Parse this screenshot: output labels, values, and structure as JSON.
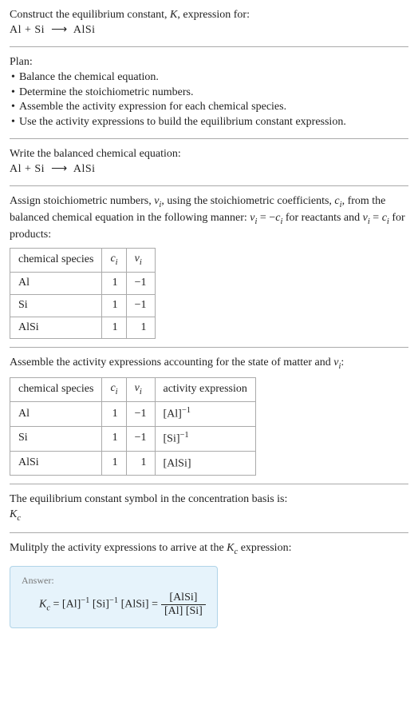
{
  "colors": {
    "text": "#222222",
    "divider": "#aaaaaa",
    "answer_bg": "#e6f3fb",
    "answer_border": "#b0d4e8",
    "answer_label": "#777777"
  },
  "header": {
    "line1_prefix": "Construct the equilibrium constant, ",
    "line1_K": "K",
    "line1_suffix": ", expression for:",
    "equation_lhs": "Al + Si",
    "arrow": "⟶",
    "equation_rhs": "AlSi"
  },
  "plan": {
    "title": "Plan:",
    "items": [
      "Balance the chemical equation.",
      "Determine the stoichiometric numbers.",
      "Assemble the activity expression for each chemical species.",
      "Use the activity expressions to build the equilibrium constant expression."
    ]
  },
  "balanced": {
    "label": "Write the balanced chemical equation:",
    "equation_lhs": "Al + Si",
    "arrow": "⟶",
    "equation_rhs": "AlSi"
  },
  "stoich_text": {
    "p1": "Assign stoichiometric numbers, ",
    "nu": "ν",
    "sub_i": "i",
    "p2": ", using the stoichiometric coefficients, ",
    "c": "c",
    "p3": ", from the balanced chemical equation in the following manner: ",
    "eq1_lhs": "ν",
    "eq1_rhs_prefix": " = −",
    "eq1_rhs_c": "c",
    "p4": " for reactants and ",
    "eq2_lhs": "ν",
    "eq2_rhs_prefix": " = ",
    "eq2_rhs_c": "c",
    "p5": " for products:"
  },
  "stoich_table": {
    "headers": {
      "species": "chemical species",
      "c": "c",
      "nu": "ν"
    },
    "rows": [
      {
        "species": "Al",
        "c": "1",
        "nu": "−1"
      },
      {
        "species": "Si",
        "c": "1",
        "nu": "−1"
      },
      {
        "species": "AlSi",
        "c": "1",
        "nu": "1"
      }
    ]
  },
  "activity_text": {
    "prefix": "Assemble the activity expressions accounting for the state of matter and ",
    "nu": "ν",
    "sub_i": "i",
    "suffix": ":"
  },
  "activity_table": {
    "headers": {
      "species": "chemical species",
      "c": "c",
      "nu": "ν",
      "expr": "activity expression"
    },
    "rows": [
      {
        "species": "Al",
        "c": "1",
        "nu": "−1",
        "base": "[Al]",
        "exp": "−1"
      },
      {
        "species": "Si",
        "c": "1",
        "nu": "−1",
        "base": "[Si]",
        "exp": "−1"
      },
      {
        "species": "AlSi",
        "c": "1",
        "nu": "1",
        "base": "[AlSi]",
        "exp": ""
      }
    ]
  },
  "symbol_section": {
    "label": "The equilibrium constant symbol in the concentration basis is:",
    "K": "K",
    "sub": "c"
  },
  "multiply_section": {
    "prefix": "Mulitply the activity expressions to arrive at the ",
    "K": "K",
    "sub": "c",
    "suffix": " expression:"
  },
  "answer": {
    "label": "Answer:",
    "K": "K",
    "sub": "c",
    "eq": " = ",
    "term1_base": "[Al]",
    "term1_exp": "−1",
    "sp": " ",
    "term2_base": "[Si]",
    "term2_exp": "−1",
    "term3_base": "[AlSi]",
    "frac_num": "[AlSi]",
    "frac_den": "[Al] [Si]"
  }
}
